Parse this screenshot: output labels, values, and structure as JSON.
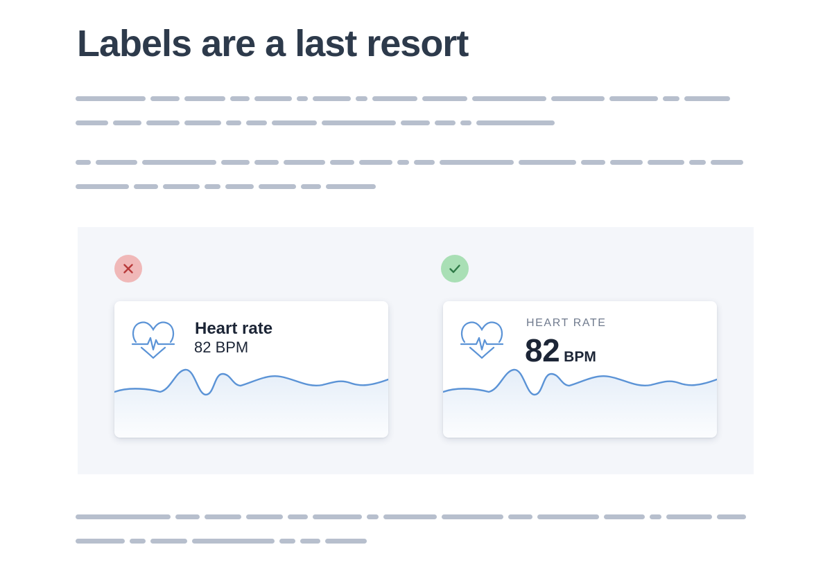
{
  "page": {
    "title": "Labels are a last resort"
  },
  "colors": {
    "heading": "#2d3a4b",
    "placeholder_text": "#b7bfcd",
    "panel_background": "#f4f6fa",
    "bad_badge": "#f0b8b8",
    "bad_mark": "#b83a3a",
    "good_badge": "#a9dfb5",
    "good_mark": "#2e7a46",
    "accent_line": "#5b93d6",
    "card_text": "#1c2536",
    "caps_label": "#6f7a8d"
  },
  "example": {
    "bad": {
      "badge_icon": "x-icon",
      "card_icon": "heart-pulse-icon",
      "label": "Heart rate",
      "value": "82 BPM"
    },
    "good": {
      "badge_icon": "check-icon",
      "card_icon": "heart-pulse-icon",
      "label": "HEART RATE",
      "value": "82",
      "unit": "BPM"
    }
  }
}
